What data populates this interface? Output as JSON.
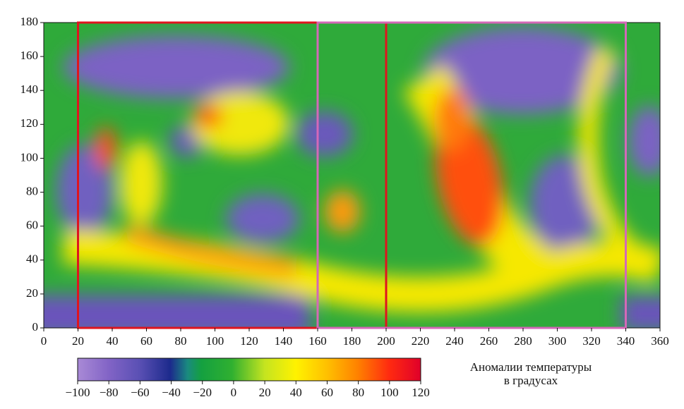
{
  "axes": {
    "xlim": [
      0,
      360
    ],
    "xticks": [
      0,
      20,
      40,
      60,
      80,
      100,
      120,
      140,
      160,
      180,
      200,
      220,
      240,
      260,
      280,
      300,
      320,
      340,
      360
    ],
    "ylim": [
      0,
      180
    ],
    "yticks": [
      0,
      20,
      40,
      60,
      80,
      100,
      120,
      140,
      160,
      180
    ]
  },
  "regions": [
    {
      "color": "#e0141e",
      "x": [
        20,
        200
      ]
    },
    {
      "color": "#d468b8",
      "x": [
        160,
        340
      ]
    }
  ],
  "colorbar": {
    "lim": [
      -100,
      120
    ],
    "ticks": [
      {
        "value": -100,
        "label": "−100"
      },
      {
        "value": -80,
        "label": "−80"
      },
      {
        "value": -60,
        "label": "−60"
      },
      {
        "value": -40,
        "label": "−40"
      },
      {
        "value": -20,
        "label": "−20"
      },
      0,
      20,
      40,
      60,
      80,
      100,
      120
    ]
  },
  "legend_title": [
    "Аномалии температуры",
    "в градусах"
  ]
}
